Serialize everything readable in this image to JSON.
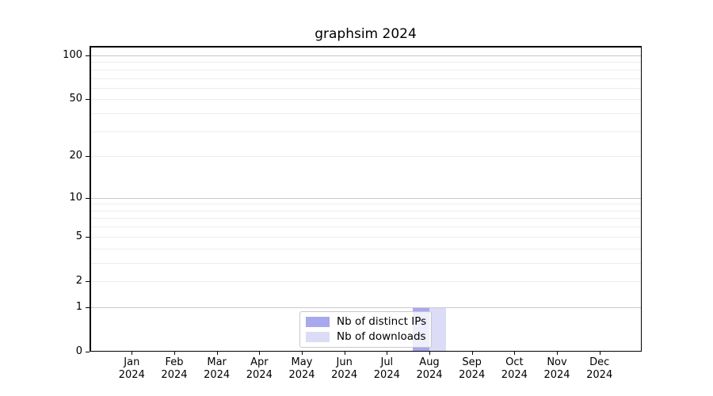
{
  "title": "graphsim 2024",
  "chart_data": {
    "type": "bar",
    "title": "graphsim 2024",
    "categories": [
      "Jan 2024",
      "Feb 2024",
      "Mar 2024",
      "Apr 2024",
      "May 2024",
      "Jun 2024",
      "Jul 2024",
      "Aug 2024",
      "Sep 2024",
      "Oct 2024",
      "Nov 2024",
      "Dec 2024"
    ],
    "series": [
      {
        "name": "Nb of distinct IPs",
        "color": "#a8a8ee",
        "values": [
          0,
          0,
          0,
          0,
          0,
          0,
          0,
          1,
          0,
          0,
          0,
          0
        ]
      },
      {
        "name": "Nb of downloads",
        "color": "#dcdcf7",
        "values": [
          0,
          0,
          0,
          0,
          0,
          0,
          0,
          1,
          0,
          0,
          0,
          0
        ]
      }
    ],
    "xlabel": "",
    "ylabel": "",
    "y_axis": {
      "scale": "log1p",
      "tick_values": [
        100,
        50,
        20,
        10,
        5,
        2,
        1,
        0
      ],
      "range": [
        0,
        116
      ],
      "major_gridline_values": [
        1,
        10,
        100
      ],
      "minor_gridline_values": [
        2,
        3,
        4,
        5,
        6,
        7,
        8,
        9,
        20,
        30,
        40,
        50,
        60,
        70,
        80,
        90
      ]
    },
    "legend": {
      "position": "bottom-center-inside",
      "entries": [
        "Nb of distinct IPs",
        "Nb of downloads"
      ]
    },
    "grid": true
  },
  "colors": {
    "background": "#ffffff",
    "spine": "#000000",
    "major_grid": "#c9c9c9",
    "minor_grid": "#ececec",
    "text": "#000000",
    "legend_border": "#c8c8c8",
    "legend_bg": "rgba(255,255,255,0.8)"
  }
}
